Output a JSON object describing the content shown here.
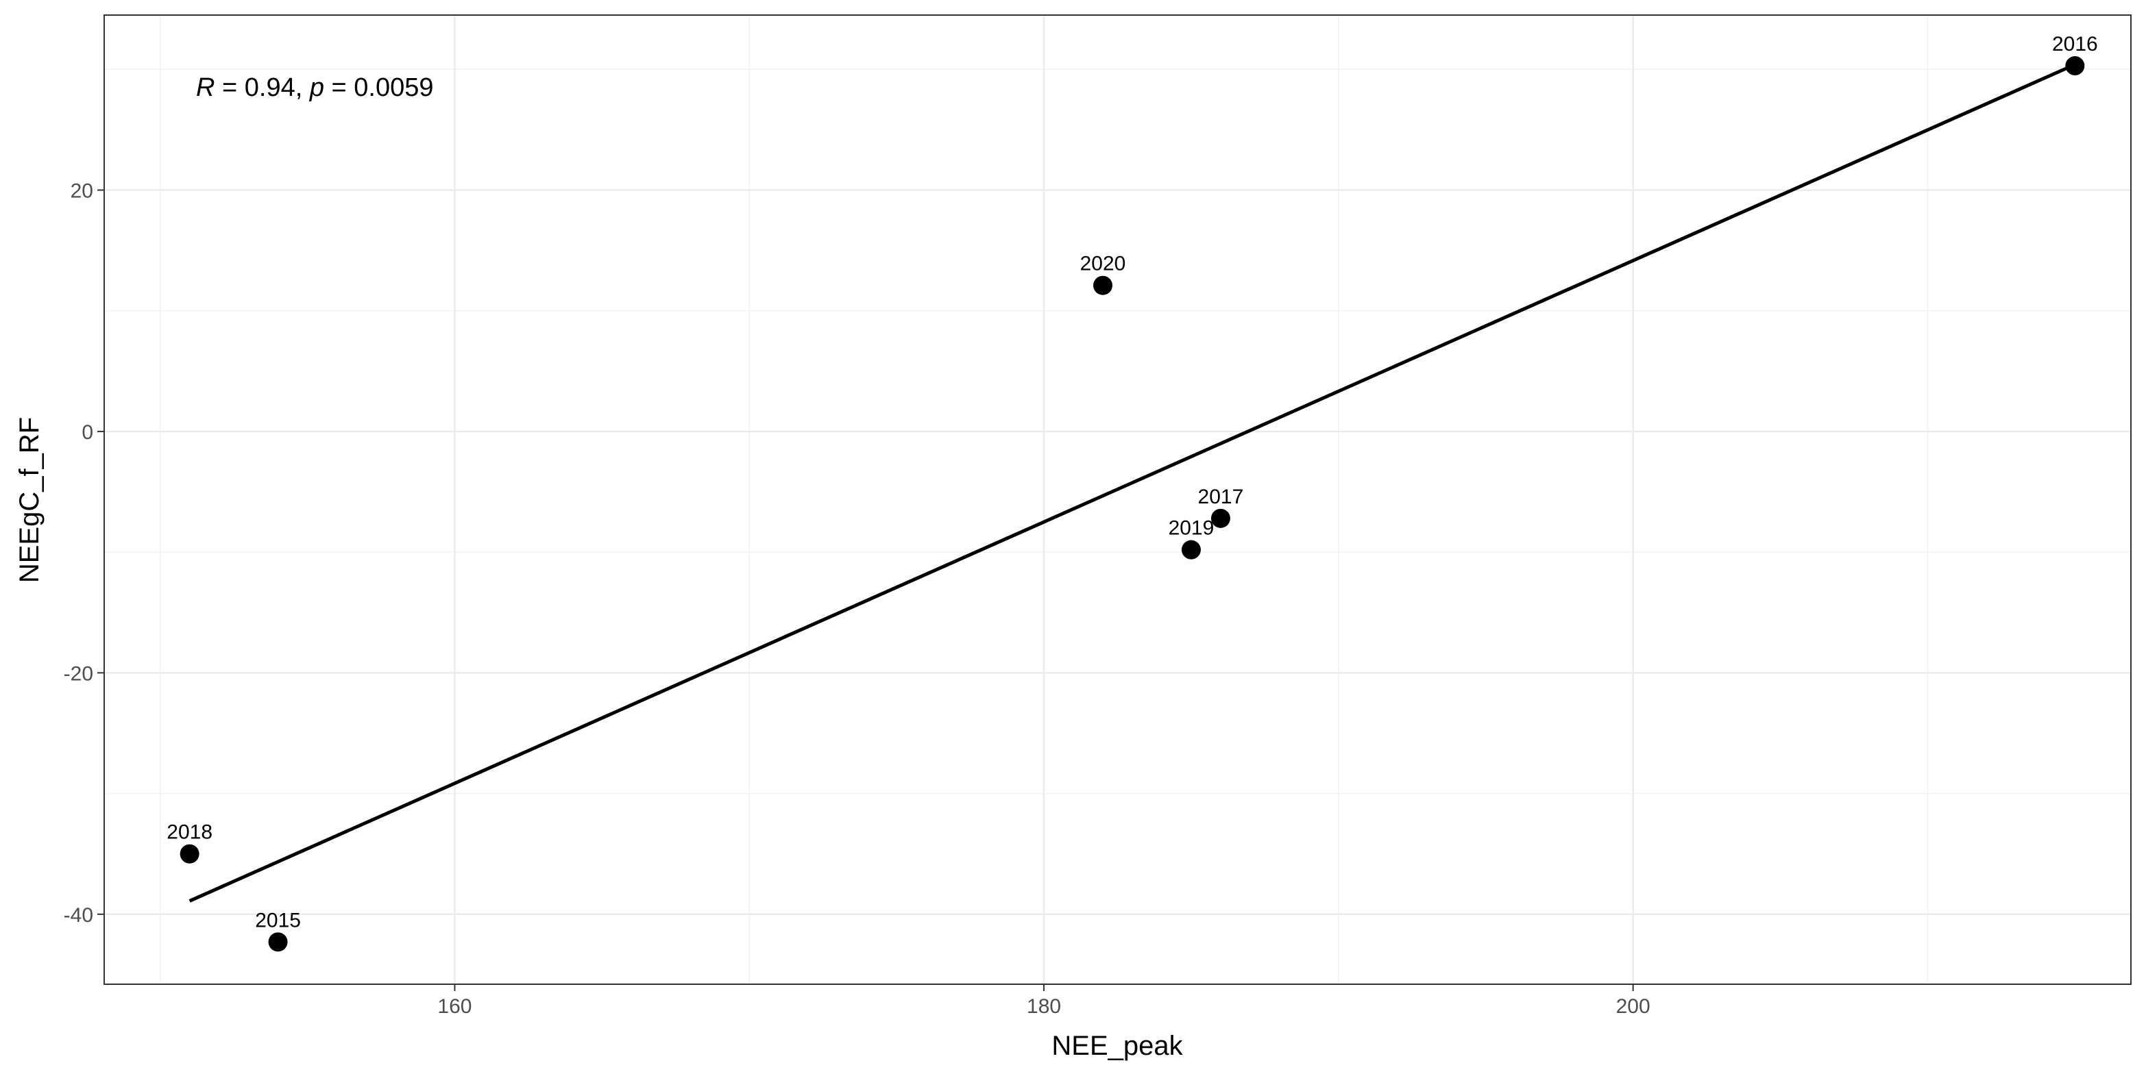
{
  "chart_data": {
    "type": "scatter",
    "title": "",
    "xlabel": "NEE_peak",
    "ylabel": "NEEgC_f_RF",
    "xlim": [
      148.1,
      216.9
    ],
    "ylim": [
      -45.8,
      34.5
    ],
    "x_ticks": [
      160,
      180,
      200
    ],
    "y_ticks": [
      -40,
      -20,
      0,
      20
    ],
    "x_tick_labels": [
      "160",
      "180",
      "200"
    ],
    "y_tick_labels": [
      "-40",
      "-20",
      "0",
      "20"
    ],
    "grid": true,
    "points": [
      {
        "label": "2015",
        "x": 154.0,
        "y": -42.3
      },
      {
        "label": "2016",
        "x": 215.0,
        "y": 30.3
      },
      {
        "label": "2017",
        "x": 186.0,
        "y": -7.2
      },
      {
        "label": "2018",
        "x": 151.0,
        "y": -35.0
      },
      {
        "label": "2019",
        "x": 185.0,
        "y": -9.8
      },
      {
        "label": "2020",
        "x": 182.0,
        "y": 12.1
      }
    ],
    "fit_line": {
      "x": [
        151.0,
        215.0
      ],
      "y": [
        -38.9,
        30.4
      ]
    },
    "annotation": {
      "r_symbol": "R",
      "r_text": " = 0.94, ",
      "p_symbol": "p",
      "p_text": " = 0.0059"
    }
  }
}
